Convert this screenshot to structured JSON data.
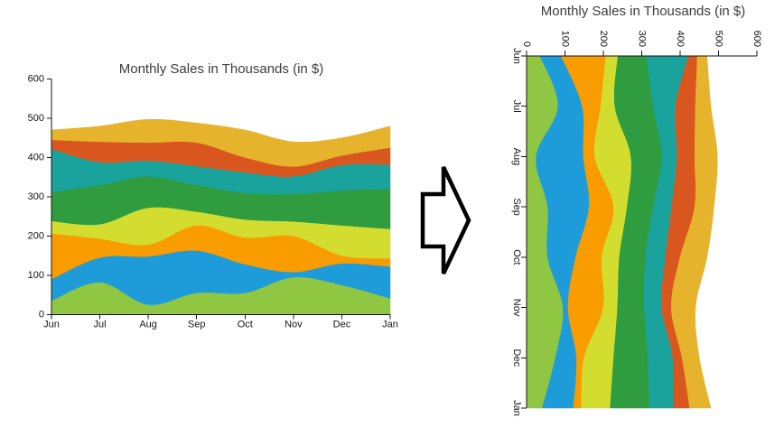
{
  "background_color": "#ffffff",
  "arrow": {
    "icon": "block-arrow-right-icon",
    "fill_color": "#ffffff",
    "stroke_color": "#000000"
  },
  "chart_data": [
    {
      "type": "area",
      "variant": "stacked-spline-stream",
      "orientation": "horizontal",
      "title": "Monthly Sales in Thousands (in $)",
      "title_color": "#3c3c3c",
      "axis_color": "#141414",
      "grid": false,
      "legend": false,
      "categories": [
        "Jun",
        "Jul",
        "Aug",
        "Sep",
        "Oct",
        "Nov",
        "Dec",
        "Jan"
      ],
      "category_axis": {
        "position": "bottom",
        "label_rotation": 0
      },
      "value_axis": {
        "position": "left",
        "min": 0,
        "max": 600,
        "tick_interval": 100,
        "ticks": [
          0,
          100,
          200,
          300,
          400,
          500,
          600
        ],
        "label_rotation": 0
      },
      "series": [
        {
          "color": "#8FC742",
          "values": [
            35,
            82,
            25,
            55,
            55,
            95,
            75,
            41
          ]
        },
        {
          "color": "#1E9BD9",
          "values": [
            55,
            63,
            123,
            108,
            73,
            13,
            55,
            81
          ]
        },
        {
          "color": "#F89C00",
          "values": [
            117,
            48,
            30,
            64,
            68,
            92,
            20,
            21
          ]
        },
        {
          "color": "#D3DD2F",
          "values": [
            31,
            37,
            94,
            35,
            46,
            37,
            77,
            75
          ]
        },
        {
          "color": "#2E9C3F",
          "values": [
            74,
            100,
            80,
            68,
            68,
            70,
            89,
            102
          ]
        },
        {
          "color": "#1AA39C",
          "values": [
            110,
            58,
            40,
            48,
            52,
            45,
            65,
            62
          ]
        },
        {
          "color": "#D9571E",
          "values": [
            23,
            52,
            46,
            60,
            38,
            25,
            24,
            43
          ]
        },
        {
          "color": "#E5B42C",
          "values": [
            25,
            40,
            59,
            50,
            70,
            63,
            45,
            55
          ]
        }
      ]
    },
    {
      "type": "area",
      "variant": "stacked-spline-stream",
      "orientation": "vertical",
      "title": "Monthly Sales in Thousands (in $)",
      "title_color": "#3c3c3c",
      "axis_color": "#141414",
      "grid": false,
      "legend": false,
      "categories": [
        "Jun",
        "Jul",
        "Aug",
        "Sep",
        "Oct",
        "Nov",
        "Dec",
        "Jan"
      ],
      "category_axis": {
        "position": "left",
        "label_rotation": 90
      },
      "value_axis": {
        "position": "top",
        "min": 0,
        "max": 600,
        "tick_interval": 100,
        "ticks": [
          0,
          100,
          200,
          300,
          400,
          500,
          600
        ],
        "label_rotation": 90
      },
      "series": [
        {
          "color": "#8FC742",
          "values": [
            35,
            82,
            25,
            55,
            55,
            95,
            75,
            41
          ]
        },
        {
          "color": "#1E9BD9",
          "values": [
            55,
            63,
            123,
            108,
            73,
            13,
            55,
            81
          ]
        },
        {
          "color": "#F89C00",
          "values": [
            117,
            48,
            30,
            64,
            68,
            92,
            20,
            21
          ]
        },
        {
          "color": "#D3DD2F",
          "values": [
            31,
            37,
            94,
            35,
            46,
            37,
            77,
            75
          ]
        },
        {
          "color": "#2E9C3F",
          "values": [
            74,
            100,
            80,
            68,
            68,
            70,
            89,
            102
          ]
        },
        {
          "color": "#1AA39C",
          "values": [
            110,
            58,
            40,
            48,
            52,
            45,
            65,
            62
          ]
        },
        {
          "color": "#D9571E",
          "values": [
            23,
            52,
            46,
            60,
            38,
            25,
            24,
            43
          ]
        },
        {
          "color": "#E5B42C",
          "values": [
            25,
            40,
            59,
            50,
            70,
            63,
            45,
            55
          ]
        }
      ]
    }
  ]
}
